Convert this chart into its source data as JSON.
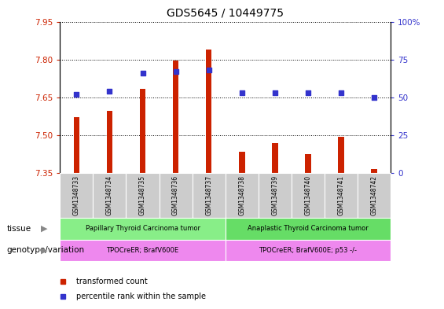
{
  "title": "GDS5645 / 10449775",
  "samples": [
    "GSM1348733",
    "GSM1348734",
    "GSM1348735",
    "GSM1348736",
    "GSM1348737",
    "GSM1348738",
    "GSM1348739",
    "GSM1348740",
    "GSM1348741",
    "GSM1348742"
  ],
  "transformed_count": [
    7.57,
    7.595,
    7.685,
    7.795,
    7.84,
    7.435,
    7.47,
    7.425,
    7.495,
    7.365
  ],
  "percentile_rank": [
    52,
    54,
    66,
    67,
    68,
    53,
    53,
    53,
    53,
    50
  ],
  "ylim": [
    7.35,
    7.95
  ],
  "y2lim": [
    0,
    100
  ],
  "yticks": [
    7.35,
    7.5,
    7.65,
    7.8,
    7.95
  ],
  "y2ticks": [
    0,
    25,
    50,
    75,
    100
  ],
  "bar_color": "#cc2200",
  "dot_color": "#3333cc",
  "tissue_groups": [
    {
      "label": "Papillary Thyroid Carcinoma tumor",
      "start": 0,
      "end": 5,
      "color": "#88ee88"
    },
    {
      "label": "Anaplastic Thyroid Carcinoma tumor",
      "start": 5,
      "end": 10,
      "color": "#66dd66"
    }
  ],
  "genotype_groups": [
    {
      "label": "TPOCreER; BrafV600E",
      "start": 0,
      "end": 5,
      "color": "#ee88ee"
    },
    {
      "label": "TPOCreER; BrafV600E; p53 -/-",
      "start": 5,
      "end": 10,
      "color": "#ee88ee"
    }
  ],
  "tissue_label": "tissue",
  "genotype_label": "genotype/variation",
  "legend_items": [
    {
      "color": "#cc2200",
      "label": "transformed count",
      "marker": "s"
    },
    {
      "color": "#3333cc",
      "label": "percentile rank within the sample",
      "marker": "s"
    }
  ],
  "sample_box_color": "#cccccc",
  "bar_width": 0.18
}
